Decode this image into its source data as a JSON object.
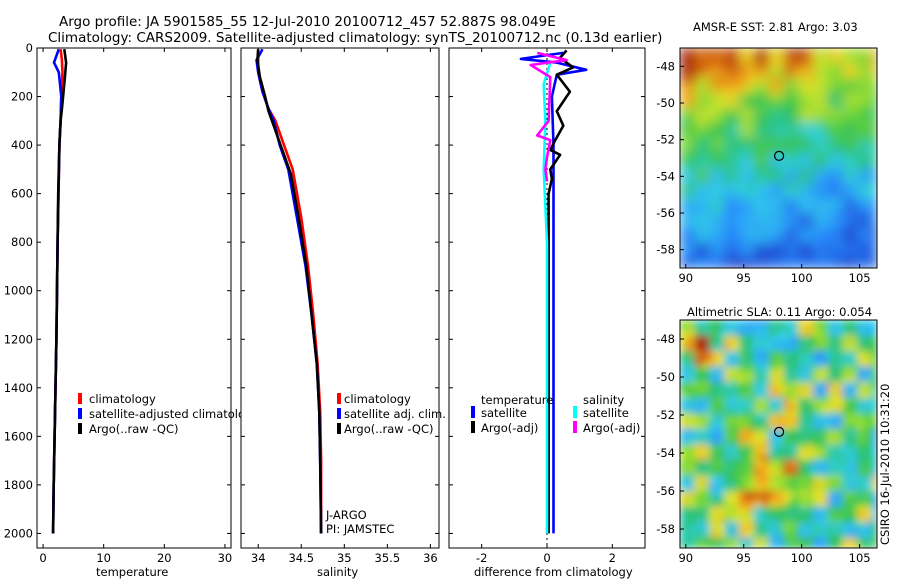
{
  "header": {
    "line1": "Argo profile: JA 5901585_55 12-Jul-2010 20100712_457 52.887S 98.049E",
    "line2": "Climatology: CARS2009. Satellite-adjusted climatology: synTS_20100712.nc (0.13d earlier)"
  },
  "colors": {
    "red": "#ff0000",
    "blue": "#0000ff",
    "black": "#000000",
    "cyan": "#00ffff",
    "magenta": "#ff00ff"
  },
  "chart_data": [
    {
      "type": "line",
      "id": "temperature",
      "xlabel": "temperature",
      "ylabel": "",
      "xlim": [
        -1,
        31
      ],
      "ylim": [
        2060,
        0
      ],
      "xticks": [
        0,
        10,
        20,
        30
      ],
      "xtick_labels": [
        "0",
        "10",
        "20",
        "30"
      ],
      "yticks": [
        0,
        200,
        400,
        600,
        800,
        1000,
        1200,
        1400,
        1600,
        1800,
        2000
      ],
      "ytick_labels": [
        "0",
        "200",
        "400",
        "600",
        "800",
        "1000",
        "1200",
        "1400",
        "1600",
        "1800",
        "2000"
      ],
      "legend": [
        "climatology",
        "satellite-adjusted climatology",
        "Argo(..raw -QC)"
      ],
      "series": [
        {
          "name": "climatology",
          "color": "red",
          "points": [
            [
              2.9,
              5
            ],
            [
              3.1,
              50
            ],
            [
              3.2,
              100
            ],
            [
              3.0,
              200
            ],
            [
              2.9,
              300
            ],
            [
              2.7,
              400
            ],
            [
              2.55,
              600
            ],
            [
              2.4,
              800
            ],
            [
              2.3,
              1000
            ],
            [
              2.2,
              1200
            ],
            [
              2.05,
              1400
            ],
            [
              1.9,
              1600
            ],
            [
              1.75,
              1800
            ],
            [
              1.65,
              2000
            ]
          ]
        },
        {
          "name": "satellite-adjusted climatology",
          "color": "blue",
          "points": [
            [
              2.6,
              5
            ],
            [
              1.8,
              60
            ],
            [
              2.6,
              100
            ],
            [
              3.0,
              200
            ],
            [
              2.9,
              300
            ],
            [
              2.7,
              400
            ],
            [
              2.55,
              600
            ],
            [
              2.4,
              800
            ],
            [
              2.3,
              1000
            ],
            [
              2.2,
              1200
            ],
            [
              2.05,
              1400
            ],
            [
              1.9,
              1600
            ],
            [
              1.75,
              1800
            ],
            [
              1.65,
              2000
            ]
          ]
        },
        {
          "name": "Argo(..raw -QC)",
          "color": "black",
          "points": [
            [
              3.5,
              5
            ],
            [
              3.8,
              60
            ],
            [
              3.6,
              120
            ],
            [
              3.3,
              200
            ],
            [
              3.1,
              250
            ],
            [
              2.9,
              300
            ],
            [
              2.8,
              350
            ],
            [
              2.7,
              400
            ],
            [
              2.6,
              500
            ],
            [
              2.5,
              600
            ],
            [
              2.4,
              800
            ],
            [
              2.3,
              1000
            ],
            [
              2.2,
              1200
            ],
            [
              2.05,
              1400
            ],
            [
              1.9,
              1600
            ],
            [
              1.75,
              1800
            ],
            [
              1.65,
              2000
            ]
          ]
        }
      ]
    },
    {
      "type": "line",
      "id": "salinity",
      "xlabel": "salinity",
      "xlim": [
        33.8,
        36.1
      ],
      "ylim": [
        2060,
        0
      ],
      "xticks": [
        34,
        34.5,
        35,
        35.5,
        36
      ],
      "xtick_labels": [
        "34",
        "34.5",
        "35",
        "35.5",
        "36"
      ],
      "legend": [
        "climatology",
        "satellite adj. clim.",
        "Argo(..raw -QC)"
      ],
      "annotation": [
        "J-ARGO",
        "PI: JAMSTEC"
      ],
      "series": [
        {
          "name": "climatology",
          "color": "red",
          "points": [
            [
              34.0,
              5
            ],
            [
              34.0,
              100
            ],
            [
              34.05,
              180
            ],
            [
              34.12,
              250
            ],
            [
              34.2,
              300
            ],
            [
              34.3,
              400
            ],
            [
              34.4,
              500
            ],
            [
              34.5,
              700
            ],
            [
              34.58,
              900
            ],
            [
              34.64,
              1100
            ],
            [
              34.69,
              1300
            ],
            [
              34.72,
              1500
            ],
            [
              34.73,
              1700
            ],
            [
              34.73,
              2000
            ]
          ]
        },
        {
          "name": "satellite adj. clim.",
          "color": "blue",
          "points": [
            [
              34.05,
              5
            ],
            [
              33.98,
              50
            ],
            [
              34.0,
              100
            ],
            [
              34.05,
              180
            ],
            [
              34.12,
              250
            ],
            [
              34.18,
              300
            ],
            [
              34.25,
              400
            ],
            [
              34.35,
              500
            ],
            [
              34.45,
              700
            ],
            [
              34.55,
              900
            ],
            [
              34.62,
              1100
            ],
            [
              34.68,
              1300
            ],
            [
              34.71,
              1500
            ],
            [
              34.72,
              1700
            ],
            [
              34.73,
              2000
            ]
          ]
        },
        {
          "name": "Argo(..raw -QC)",
          "color": "black",
          "points": [
            [
              34.0,
              5
            ],
            [
              33.99,
              50
            ],
            [
              34.02,
              120
            ],
            [
              34.08,
              200
            ],
            [
              34.12,
              260
            ],
            [
              34.18,
              320
            ],
            [
              34.28,
              420
            ],
            [
              34.38,
              520
            ],
            [
              34.47,
              700
            ],
            [
              34.56,
              900
            ],
            [
              34.62,
              1100
            ],
            [
              34.68,
              1300
            ],
            [
              34.71,
              1500
            ],
            [
              34.72,
              1700
            ],
            [
              34.73,
              2000
            ]
          ]
        }
      ]
    },
    {
      "type": "line",
      "id": "difference",
      "xlabel": "difference from climatology",
      "xlim": [
        -3,
        3
      ],
      "ylim": [
        2060,
        0
      ],
      "xticks": [
        -2,
        0,
        2
      ],
      "xtick_labels": [
        "-2",
        "0",
        "2"
      ],
      "legend_left_title": "temperature",
      "legend_right_title": "salinity",
      "legend": [
        "satellite",
        "Argo(-adj)",
        "satellite",
        "Argo(-adj)"
      ],
      "series": [
        {
          "name": "temperature satellite",
          "color": "blue",
          "points": [
            [
              0.5,
              20
            ],
            [
              -0.8,
              45
            ],
            [
              0.3,
              60
            ],
            [
              1.2,
              90
            ],
            [
              0.3,
              110
            ],
            [
              0.15,
              200
            ],
            [
              0.2,
              400
            ],
            [
              0.2,
              800
            ],
            [
              0.2,
              1200
            ],
            [
              0.2,
              1600
            ],
            [
              0.2,
              2000
            ]
          ]
        },
        {
          "name": "temperature Argo(-adj)",
          "color": "black",
          "points": [
            [
              0.6,
              10
            ],
            [
              0.4,
              40
            ],
            [
              0.8,
              80
            ],
            [
              0.3,
              110
            ],
            [
              0.7,
              180
            ],
            [
              0.3,
              260
            ],
            [
              0.5,
              320
            ],
            [
              0.25,
              380
            ],
            [
              0.1,
              420
            ],
            [
              0.4,
              440
            ],
            [
              0.1,
              500
            ],
            [
              0.15,
              540
            ],
            [
              0.05,
              600
            ],
            [
              0.05,
              800
            ],
            [
              0.05,
              1200
            ],
            [
              0.05,
              1600
            ],
            [
              0.05,
              2000
            ]
          ]
        },
        {
          "name": "salinity satellite",
          "color": "cyan",
          "points": [
            [
              0.1,
              60
            ],
            [
              -0.1,
              150
            ],
            [
              -0.05,
              300
            ],
            [
              -0.1,
              500
            ],
            [
              0.0,
              800
            ],
            [
              0.0,
              1200
            ],
            [
              0.0,
              1600
            ],
            [
              0.0,
              2000
            ]
          ]
        },
        {
          "name": "salinity Argo(-adj)",
          "color": "magenta",
          "points": [
            [
              -0.3,
              20
            ],
            [
              0.6,
              50
            ],
            [
              -0.5,
              70
            ],
            [
              0.1,
              120
            ],
            [
              0.05,
              300
            ],
            [
              -0.3,
              360
            ],
            [
              0.1,
              380
            ],
            [
              0.0,
              450
            ],
            [
              -0.05,
              500
            ],
            [
              0.0,
              550
            ]
          ]
        }
      ]
    },
    {
      "type": "heatmap",
      "id": "sst",
      "title": "AMSR-E SST: 2.81  Argo: 3.03",
      "xlim": [
        89.5,
        106.5
      ],
      "ylim": [
        -59,
        -47
      ],
      "xticks": [
        90,
        95,
        100,
        105
      ],
      "xtick_labels": [
        "90",
        "95",
        "100",
        "105"
      ],
      "yticks": [
        -48,
        -50,
        -52,
        -54,
        -56,
        -58
      ],
      "ytick_labels": [
        "-48",
        "-50",
        "-52",
        "-54",
        "-56",
        "-58"
      ],
      "marker": [
        98.049,
        -52.887
      ]
    },
    {
      "type": "heatmap",
      "id": "sla",
      "title": "Altimetric SLA: 0.11  Argo: 0.054",
      "xlim": [
        89.5,
        106.5
      ],
      "ylim": [
        -59,
        -47
      ],
      "xticks": [
        90,
        95,
        100,
        105
      ],
      "xtick_labels": [
        "90",
        "95",
        "100",
        "105"
      ],
      "yticks": [
        -48,
        -50,
        -52,
        -54,
        -56,
        -58
      ],
      "ytick_labels": [
        "-48",
        "-50",
        "-52",
        "-54",
        "-56",
        "-58"
      ],
      "marker": [
        98.049,
        -52.887
      ]
    }
  ],
  "side_label": "CSIRO 16-Jul-2010 10:31:20"
}
